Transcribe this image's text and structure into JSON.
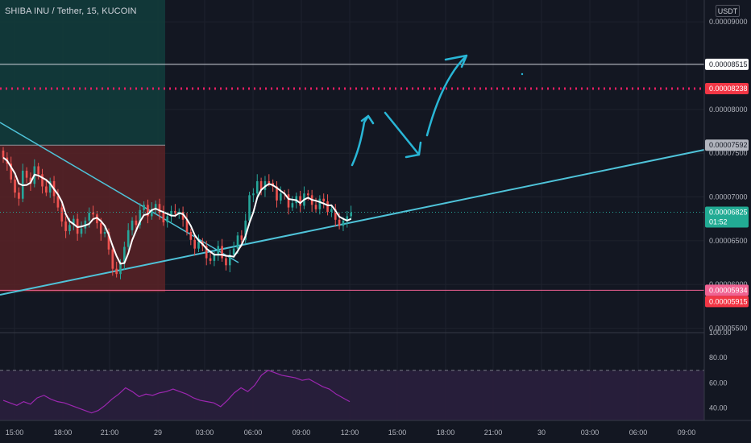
{
  "header": {
    "symbol_title": "SHIBA INU / Tether, 15, KUCOIN",
    "currency": "USDT"
  },
  "colors": {
    "background": "#131722",
    "grid": "#1e222d",
    "axis_text": "#b2b5be",
    "candle_up": "#26a69a",
    "candle_down": "#ef5350",
    "candle_body": "#dcdcdc",
    "ma": "#ffffff",
    "trendline": "#4fc3d9",
    "drawing": "#29b6d6",
    "rsi": "#9c27b0",
    "rsi_band": "#2a1f3d",
    "long_profit": "#123b3b",
    "long_loss": "#5a2226",
    "resistance_solid": "#d1d4dc",
    "resistance_dotted": "#e91e63",
    "support": "#f23645"
  },
  "price_axis": {
    "ticks": [
      "0.00009000",
      "0.00008000",
      "0.00007500",
      "0.00007000",
      "0.00006500",
      "0.00006000",
      "0.00005500"
    ],
    "labels": [
      {
        "text": "0.00008515",
        "kind": "white",
        "price": 8.515e-05
      },
      {
        "text": "0.00008238",
        "kind": "red",
        "price": 8.238e-05
      },
      {
        "text": "0.00007592",
        "kind": "grey",
        "price": 7.592e-05
      },
      {
        "text": "0.00006825",
        "kind": "green",
        "price": 6.825e-05,
        "countdown": "01:52"
      },
      {
        "text": "0.00005934",
        "kind": "pink",
        "price": 5.934e-05
      },
      {
        "text": "0.00005915",
        "kind": "red",
        "price": 5.915e-05
      }
    ]
  },
  "time_axis": {
    "ticks": [
      "15:00",
      "18:00",
      "21:00",
      "29",
      "03:00",
      "06:00",
      "09:00",
      "12:00",
      "15:00",
      "18:00",
      "21:00",
      "30",
      "03:00",
      "06:00",
      "09:00"
    ]
  },
  "rsi_axis": {
    "ticks": [
      "100.00",
      "80.00",
      "60.00",
      "40.00"
    ]
  },
  "chart_data": {
    "type": "candlestick",
    "title": "SHIBA INU / Tether, 15, KUCOIN",
    "timeframe": "15",
    "exchange": "KUCOIN",
    "ylim": [
      5.45e-05,
      9.25e-05
    ],
    "last_price": 6.825e-05,
    "series": [
      {
        "name": "close",
        "values": [
          7.45e-05,
          7.38e-05,
          7.2e-05,
          7.05e-05,
          6.98e-05,
          7.3e-05,
          7.22e-05,
          7.15e-05,
          7.35e-05,
          7.26e-05,
          7.12e-05,
          7.05e-05,
          7.18e-05,
          7.01e-05,
          6.88e-05,
          6.72e-05,
          6.61e-05,
          6.68e-05,
          6.75e-05,
          6.58e-05,
          6.64e-05,
          6.73e-05,
          6.82e-05,
          6.8e-05,
          6.7e-05,
          6.58e-05,
          6.6e-05,
          6.4e-05,
          6.18e-05,
          6.12e-05,
          6.25e-05,
          6.43e-05,
          6.62e-05,
          6.73e-05,
          6.68e-05,
          6.85e-05,
          6.91e-05,
          6.78e-05,
          6.86e-05,
          6.92e-05,
          6.82e-05,
          6.71e-05,
          6.78e-05,
          6.84e-05,
          6.81e-05,
          6.83e-05,
          6.74e-05,
          6.6e-05,
          6.51e-05,
          6.41e-05,
          6.49e-05,
          6.44e-05,
          6.3e-05,
          6.27e-05,
          6.35e-05,
          6.44e-05,
          6.3e-05,
          6.22e-05,
          6.34e-05,
          6.41e-05,
          6.56e-05,
          6.51e-05,
          6.73e-05,
          7.02e-05,
          7.04e-05,
          7.18e-05,
          7.08e-05,
          7.18e-05,
          7.16e-05,
          7.12e-05,
          6.96e-05,
          7.04e-05,
          7.03e-05,
          6.88e-05,
          6.93e-05,
          7.01e-05,
          6.9e-05,
          7.04e-05,
          7.02e-05,
          6.91e-05,
          6.86e-05,
          6.98e-05,
          6.95e-05,
          6.83e-05,
          6.86e-05,
          6.74e-05,
          6.67e-05,
          6.73e-05,
          6.78e-05,
          6.82e-05
        ]
      }
    ],
    "rsi": {
      "name": "RSI",
      "ylim": [
        30,
        100
      ],
      "bands": [
        70,
        30
      ],
      "values": [
        46,
        44,
        42,
        45,
        43,
        48,
        50,
        47,
        45,
        44,
        42,
        40,
        38,
        36,
        38,
        42,
        47,
        51,
        56,
        53,
        49,
        51,
        50,
        52,
        53,
        55,
        53,
        51,
        48,
        46,
        45,
        44,
        41,
        46,
        52,
        56,
        53,
        58,
        66,
        70,
        68,
        66,
        65,
        64,
        62,
        63,
        60,
        57,
        55,
        51,
        48,
        45
      ]
    },
    "drawings": {
      "resistance_solid": 8.515e-05,
      "resistance_dotted": 8.238e-05,
      "support": 5.934e-05
    }
  }
}
